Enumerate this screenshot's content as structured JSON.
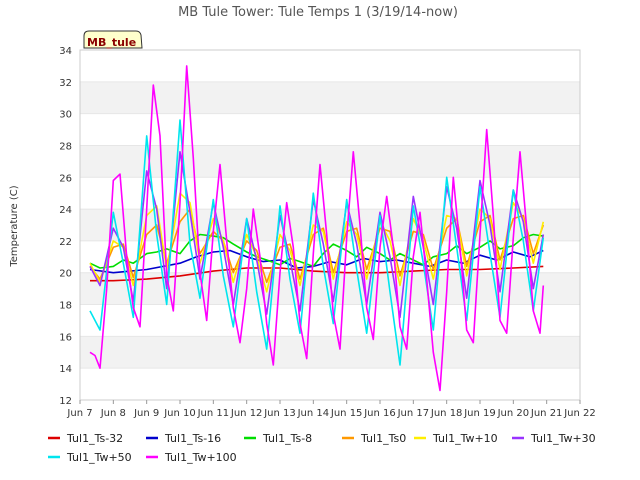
{
  "chart_data": {
    "type": "line",
    "title": "MB Tule Tower: Tule Temps 1 (3/19/14-now)",
    "ylabel": "Temperature (C)",
    "xlabel": "",
    "badge": "MB_tule",
    "ylim": [
      12,
      34
    ],
    "yticks": [
      12,
      14,
      16,
      18,
      20,
      22,
      24,
      26,
      28,
      30,
      32,
      34
    ],
    "xlim": [
      7,
      22
    ],
    "xticks": [
      {
        "v": 7,
        "label": "Jun 7"
      },
      {
        "v": 8,
        "label": "Jun 8"
      },
      {
        "v": 9,
        "label": "Jun 9"
      },
      {
        "v": 10,
        "label": "Jun 10"
      },
      {
        "v": 11,
        "label": "Jun 11"
      },
      {
        "v": 12,
        "label": "Jun 12"
      },
      {
        "v": 13,
        "label": "Jun 13"
      },
      {
        "v": 14,
        "label": "Jun 14"
      },
      {
        "v": 15,
        "label": "Jun 15"
      },
      {
        "v": 16,
        "label": "Jun 16"
      },
      {
        "v": 17,
        "label": "Jun 17"
      },
      {
        "v": 18,
        "label": "Jun 18"
      },
      {
        "v": 19,
        "label": "Jun 19"
      },
      {
        "v": 20,
        "label": "Jun 20"
      },
      {
        "v": 21,
        "label": "Jun 21"
      },
      {
        "v": 22,
        "label": "Jun 22"
      }
    ],
    "grid": true,
    "legend_position": "bottom",
    "series": [
      {
        "name": "Tul1_Ts-32",
        "color": "#dd0000",
        "x": [
          7.3,
          8.0,
          9.0,
          10.0,
          11.0,
          12.0,
          13.0,
          14.0,
          15.0,
          16.0,
          17.0,
          18.0,
          19.0,
          20.0,
          20.9
        ],
        "values": [
          19.5,
          19.5,
          19.6,
          19.8,
          20.1,
          20.3,
          20.3,
          20.1,
          20.0,
          20.0,
          20.1,
          20.2,
          20.2,
          20.3,
          20.4
        ]
      },
      {
        "name": "Tul1_Ts-16",
        "color": "#0000cc",
        "x": [
          7.3,
          8.0,
          9.0,
          10.0,
          10.5,
          11.0,
          11.5,
          12.0,
          12.5,
          13.0,
          13.5,
          14.0,
          14.5,
          15.0,
          15.5,
          16.0,
          16.5,
          17.0,
          17.5,
          18.0,
          18.5,
          19.0,
          19.5,
          20.0,
          20.5,
          20.9
        ],
        "values": [
          20.2,
          20.0,
          20.2,
          20.6,
          21.0,
          21.3,
          21.4,
          21.0,
          20.7,
          20.8,
          20.3,
          20.4,
          20.7,
          20.5,
          20.9,
          20.7,
          20.8,
          20.6,
          20.4,
          20.8,
          20.6,
          21.1,
          20.8,
          21.3,
          21.0,
          21.4
        ]
      },
      {
        "name": "Tul1_Ts-8",
        "color": "#00dd00",
        "x": [
          7.3,
          7.6,
          8.0,
          8.3,
          8.6,
          9.0,
          9.3,
          9.6,
          10.0,
          10.3,
          10.6,
          11.0,
          11.3,
          11.6,
          12.0,
          12.3,
          12.6,
          13.0,
          13.3,
          13.6,
          14.0,
          14.3,
          14.6,
          15.0,
          15.3,
          15.6,
          16.0,
          16.3,
          16.6,
          17.0,
          17.3,
          17.6,
          18.0,
          18.3,
          18.6,
          19.0,
          19.3,
          19.6,
          20.0,
          20.3,
          20.6,
          20.9
        ],
        "values": [
          20.6,
          20.3,
          20.4,
          20.8,
          20.6,
          21.2,
          21.3,
          21.5,
          21.2,
          22.0,
          22.4,
          22.3,
          22.2,
          21.8,
          21.3,
          21.0,
          20.8,
          20.5,
          20.9,
          20.7,
          20.4,
          21.2,
          21.8,
          21.4,
          21.0,
          21.6,
          21.2,
          20.8,
          21.2,
          20.8,
          20.5,
          21.0,
          21.2,
          21.7,
          21.2,
          21.6,
          22.0,
          21.5,
          21.7,
          22.2,
          22.4,
          22.3
        ]
      },
      {
        "name": "Tul1_Ts0",
        "color": "#ff9900",
        "x": [
          7.3,
          7.6,
          8.0,
          8.3,
          8.6,
          9.0,
          9.3,
          9.6,
          10.0,
          10.3,
          10.6,
          11.0,
          11.3,
          11.6,
          12.0,
          12.3,
          12.6,
          13.0,
          13.3,
          13.6,
          14.0,
          14.3,
          14.6,
          15.0,
          15.3,
          15.6,
          16.0,
          16.3,
          16.6,
          17.0,
          17.3,
          17.6,
          18.0,
          18.3,
          18.6,
          19.0,
          19.3,
          19.6,
          20.0,
          20.3,
          20.6,
          20.9
        ],
        "values": [
          20.4,
          19.6,
          21.6,
          21.8,
          19.7,
          22.4,
          23.0,
          20.6,
          23.2,
          24.0,
          21.2,
          22.6,
          22.0,
          20.0,
          22.0,
          21.4,
          19.4,
          21.6,
          21.8,
          19.6,
          22.4,
          22.8,
          20.0,
          22.6,
          22.8,
          20.2,
          22.8,
          22.6,
          19.8,
          22.6,
          22.4,
          20.2,
          22.8,
          23.4,
          20.4,
          23.2,
          23.6,
          20.8,
          23.4,
          23.6,
          21.2,
          23.0
        ]
      },
      {
        "name": "Tul1_Tw+10",
        "color": "#ffee00",
        "x": [
          7.3,
          7.6,
          8.0,
          8.3,
          8.6,
          9.0,
          9.3,
          9.6,
          10.0,
          10.3,
          10.6,
          11.0,
          11.3,
          11.6,
          12.0,
          12.3,
          12.6,
          13.0,
          13.3,
          13.6,
          14.0,
          14.3,
          14.6,
          15.0,
          15.3,
          15.6,
          16.0,
          16.3,
          16.6,
          17.0,
          17.3,
          17.6,
          18.0,
          18.3,
          18.6,
          19.0,
          19.3,
          19.6,
          20.0,
          20.3,
          20.6,
          20.9
        ],
        "values": [
          20.6,
          19.4,
          22.0,
          21.6,
          19.2,
          23.6,
          24.2,
          20.2,
          25.0,
          24.4,
          20.6,
          23.4,
          22.0,
          19.4,
          22.4,
          21.0,
          18.8,
          22.4,
          21.4,
          19.2,
          23.0,
          22.6,
          19.6,
          23.2,
          22.4,
          19.6,
          23.2,
          22.0,
          19.2,
          23.4,
          22.0,
          19.6,
          23.6,
          23.4,
          19.8,
          24.0,
          23.4,
          20.2,
          24.4,
          23.4,
          20.6,
          23.2
        ]
      },
      {
        "name": "Tul1_Tw+30",
        "color": "#9933ff",
        "x": [
          7.3,
          7.6,
          8.0,
          8.3,
          8.6,
          9.0,
          9.3,
          9.6,
          10.0,
          10.3,
          10.6,
          11.0,
          11.3,
          11.6,
          12.0,
          12.3,
          12.6,
          13.0,
          13.3,
          13.6,
          14.0,
          14.3,
          14.6,
          15.0,
          15.3,
          15.6,
          16.0,
          16.3,
          16.6,
          17.0,
          17.3,
          17.6,
          18.0,
          18.3,
          18.6,
          19.0,
          19.3,
          19.6,
          20.0,
          20.3,
          20.6,
          20.9
        ],
        "values": [
          20.4,
          19.2,
          22.8,
          21.6,
          18.2,
          26.4,
          24.0,
          19.0,
          27.6,
          23.8,
          19.6,
          24.4,
          21.6,
          18.0,
          23.4,
          20.8,
          17.4,
          23.6,
          20.8,
          17.6,
          24.6,
          21.8,
          18.2,
          24.4,
          21.8,
          18.0,
          23.8,
          21.0,
          17.2,
          24.8,
          21.6,
          18.0,
          25.4,
          22.8,
          18.4,
          25.8,
          23.0,
          18.8,
          25.2,
          23.2,
          19.0,
          22.4
        ]
      },
      {
        "name": "Tul1_Tw+50",
        "color": "#00e5ee",
        "x": [
          7.3,
          7.6,
          8.0,
          8.3,
          8.6,
          9.0,
          9.3,
          9.6,
          10.0,
          10.3,
          10.6,
          11.0,
          11.3,
          11.6,
          12.0,
          12.3,
          12.6,
          13.0,
          13.3,
          13.6,
          14.0,
          14.3,
          14.6,
          15.0,
          15.3,
          15.6,
          16.0,
          16.3,
          16.6,
          17.0,
          17.3,
          17.6,
          18.0,
          18.3,
          18.6,
          19.0,
          19.3,
          19.6,
          20.0,
          20.3,
          20.6,
          20.9
        ],
        "values": [
          17.6,
          16.4,
          23.8,
          20.6,
          17.2,
          28.6,
          22.4,
          18.0,
          29.6,
          21.8,
          18.4,
          24.6,
          19.8,
          16.6,
          23.4,
          18.8,
          15.2,
          24.2,
          19.6,
          16.2,
          25.0,
          20.4,
          16.8,
          24.6,
          20.2,
          16.2,
          23.6,
          18.8,
          14.2,
          24.2,
          20.6,
          16.4,
          26.0,
          21.6,
          17.0,
          25.4,
          21.2,
          17.2,
          25.2,
          22.0,
          17.6,
          22.2
        ]
      },
      {
        "name": "Tul1_Tw+100",
        "color": "#ff00ff",
        "x": [
          7.3,
          7.45,
          7.6,
          7.8,
          8.0,
          8.2,
          8.4,
          8.6,
          8.8,
          9.0,
          9.2,
          9.4,
          9.6,
          9.8,
          10.0,
          10.2,
          10.4,
          10.6,
          10.8,
          11.0,
          11.2,
          11.4,
          11.6,
          11.8,
          12.0,
          12.2,
          12.4,
          12.6,
          12.8,
          13.0,
          13.2,
          13.4,
          13.6,
          13.8,
          14.0,
          14.2,
          14.4,
          14.6,
          14.8,
          15.0,
          15.2,
          15.4,
          15.6,
          15.8,
          16.0,
          16.2,
          16.4,
          16.6,
          16.8,
          17.0,
          17.2,
          17.4,
          17.6,
          17.8,
          18.0,
          18.2,
          18.4,
          18.6,
          18.8,
          19.0,
          19.2,
          19.4,
          19.6,
          19.8,
          20.0,
          20.2,
          20.4,
          20.6,
          20.8,
          20.9
        ],
        "values": [
          15.0,
          14.8,
          14.0,
          19.0,
          25.8,
          26.2,
          21.0,
          17.8,
          16.6,
          24.0,
          31.8,
          28.6,
          19.8,
          17.6,
          24.4,
          33.0,
          27.2,
          20.0,
          17.0,
          22.6,
          26.8,
          22.0,
          17.8,
          15.6,
          19.0,
          24.0,
          21.0,
          16.8,
          14.2,
          20.0,
          24.4,
          21.6,
          16.8,
          14.6,
          21.2,
          26.8,
          22.4,
          17.4,
          15.2,
          22.2,
          27.6,
          23.0,
          17.8,
          15.8,
          21.6,
          24.8,
          21.6,
          16.6,
          15.2,
          21.0,
          23.8,
          19.6,
          15.0,
          12.6,
          18.8,
          26.0,
          21.6,
          16.4,
          15.6,
          22.4,
          29.0,
          23.6,
          17.0,
          16.2,
          22.2,
          27.6,
          22.8,
          17.6,
          16.2,
          19.2
        ]
      }
    ]
  }
}
